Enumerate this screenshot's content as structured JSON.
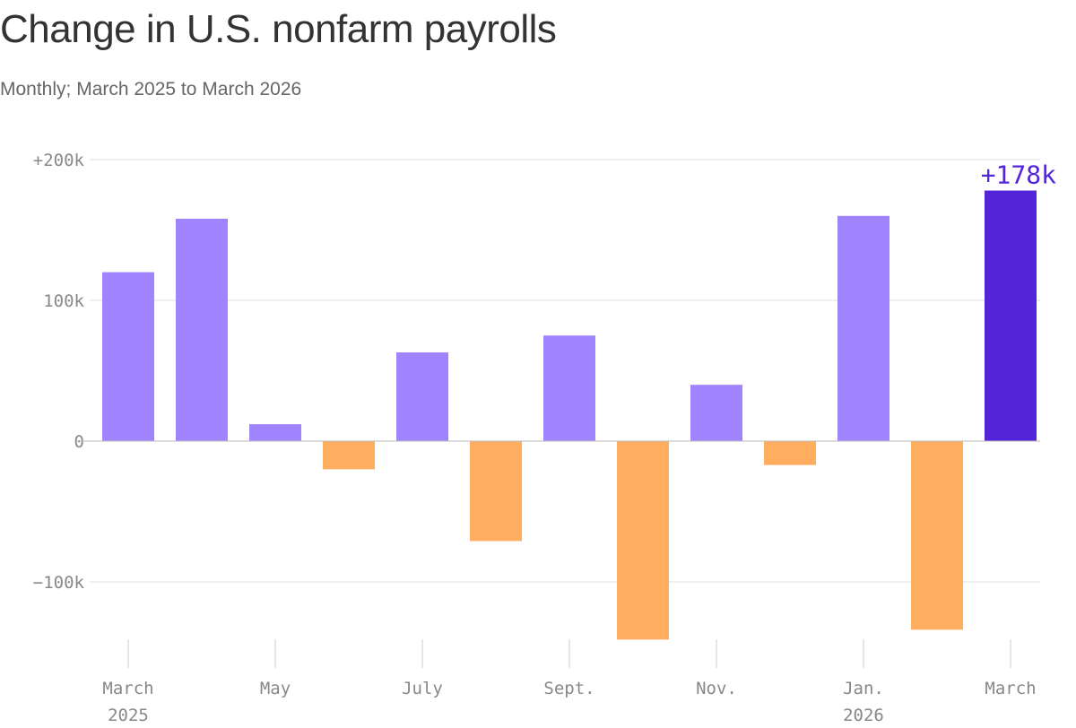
{
  "chart_data": {
    "type": "bar",
    "title": "Change in U.S. nonfarm payrolls",
    "subtitle": "Monthly; March 2025 to March 2026",
    "categories": [
      "Mar 2025",
      "Apr 2025",
      "May 2025",
      "Jun 2025",
      "Jul 2025",
      "Aug 2025",
      "Sep 2025",
      "Oct 2025",
      "Nov 2025",
      "Dec 2025",
      "Jan 2026",
      "Feb 2026",
      "Mar 2026"
    ],
    "values": [
      120000,
      158000,
      12000,
      -20000,
      63000,
      -71000,
      75000,
      -141000,
      40000,
      -17000,
      160000,
      -134000,
      178000
    ],
    "ylim": [
      -140000,
      200000
    ],
    "yticks": [
      {
        "value": 200000,
        "label": "+200k"
      },
      {
        "value": 100000,
        "label": "100k"
      },
      {
        "value": 0,
        "label": "0"
      },
      {
        "value": -100000,
        "label": "−100k"
      }
    ],
    "xticks": [
      {
        "index": 0,
        "label": "March",
        "sublabel": "2025"
      },
      {
        "index": 2,
        "label": "May",
        "sublabel": ""
      },
      {
        "index": 4,
        "label": "July",
        "sublabel": ""
      },
      {
        "index": 6,
        "label": "Sept.",
        "sublabel": ""
      },
      {
        "index": 8,
        "label": "Nov.",
        "sublabel": ""
      },
      {
        "index": 10,
        "label": "Jan.",
        "sublabel": "2026"
      },
      {
        "index": 12,
        "label": "March",
        "sublabel": ""
      }
    ],
    "annotation": {
      "index": 12,
      "label": "+178k"
    },
    "grid": true,
    "colors": {
      "positive": "#a083ff",
      "negative": "#ffad5f",
      "highlight": "#5226d8",
      "grid": "#dddddd",
      "axis_text": "#888888"
    }
  }
}
